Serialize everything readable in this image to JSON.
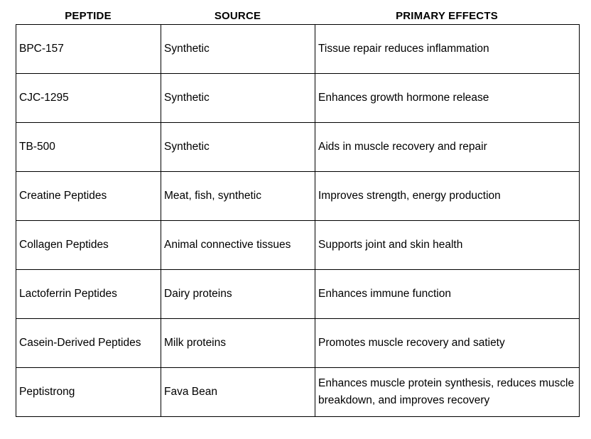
{
  "table": {
    "headers": [
      "PEPTIDE",
      "SOURCE",
      "PRIMARY EFFECTS"
    ],
    "rows": [
      {
        "peptide": "BPC-157",
        "source": "Synthetic",
        "effects": "Tissue repair reduces inflammation"
      },
      {
        "peptide": "CJC-1295",
        "source": "Synthetic",
        "effects": "Enhances growth hormone release"
      },
      {
        "peptide": "TB-500",
        "source": "Synthetic",
        "effects": "Aids in muscle recovery and repair"
      },
      {
        "peptide": "Creatine Peptides",
        "source": "Meat, fish, synthetic",
        "effects": "Improves strength, energy production"
      },
      {
        "peptide": "Collagen Peptides",
        "source": "Animal connective tissues",
        "effects": "Supports joint and skin health"
      },
      {
        "peptide": "Lactoferrin Peptides",
        "source": "Dairy proteins",
        "effects": "Enhances immune function"
      },
      {
        "peptide": "Casein-Derived Peptides",
        "source": "Milk proteins",
        "effects": "Promotes muscle recovery and satiety"
      },
      {
        "peptide": "Peptistrong",
        "source": "Fava Bean",
        "effects": "Enhances muscle protein synthesis, reduces muscle breakdown, and improves recovery"
      }
    ]
  }
}
